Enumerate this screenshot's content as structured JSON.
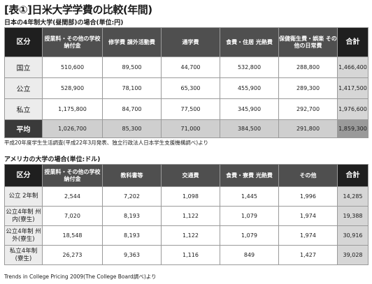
{
  "title": "[表①]日米大学学費の比較(年間)",
  "japan": {
    "subtitle": "日本の4年制大学(昼間部)の場合(単位:円)",
    "headers": [
      "区分",
      "授業料・その他の学校納付金",
      "修学費 課外活動費",
      "通学費",
      "食費・住居 光熱費",
      "保健衛生費・娯楽 その他の日常費",
      "合計"
    ],
    "rows": [
      {
        "label": "国立",
        "values": [
          "510,600",
          "89,500",
          "44,700",
          "532,800",
          "288,800"
        ],
        "total": "1,466,400"
      },
      {
        "label": "公立",
        "values": [
          "528,900",
          "78,100",
          "65,300",
          "455,900",
          "289,300"
        ],
        "total": "1,417,500"
      },
      {
        "label": "私立",
        "values": [
          "1,175,800",
          "84,700",
          "77,500",
          "345,900",
          "292,700"
        ],
        "total": "1,976,600"
      }
    ],
    "average": {
      "label": "平均",
      "values": [
        "1,026,700",
        "85,300",
        "71,000",
        "384,500",
        "291,800"
      ],
      "total": "1,859,300"
    },
    "source": "平成20年度学生生活調査(平成22年3月発表、独立行政法人日本学生支援機構調べ)より"
  },
  "usa": {
    "subtitle": "アメリカの大学の場合(単位:ドル)",
    "headers": [
      "区分",
      "授業料・その他の学校納付金",
      "教科書等",
      "交通費",
      "食費・寮費 光熱費",
      "その他",
      "合計"
    ],
    "rows": [
      {
        "label": "公立 2年制",
        "values": [
          "2,544",
          "7,202",
          "1,098",
          "1,445",
          "1,996"
        ],
        "total": "14,285"
      },
      {
        "label": "公立4年制 州内(寮生)",
        "values": [
          "7,020",
          "8,193",
          "1,122",
          "1,079",
          "1,974"
        ],
        "total": "19,388"
      },
      {
        "label": "公立4年制 州外(寮生)",
        "values": [
          "18,548",
          "8,193",
          "1,122",
          "1,079",
          "1,974"
        ],
        "total": "30,916"
      },
      {
        "label": "私立4年制 (寮生)",
        "values": [
          "26,273",
          "9,363",
          "1,116",
          "849",
          "1,427"
        ],
        "total": "39,028"
      }
    ],
    "source": "Trends in College Pricing 2009(The College Board調べ)より"
  }
}
